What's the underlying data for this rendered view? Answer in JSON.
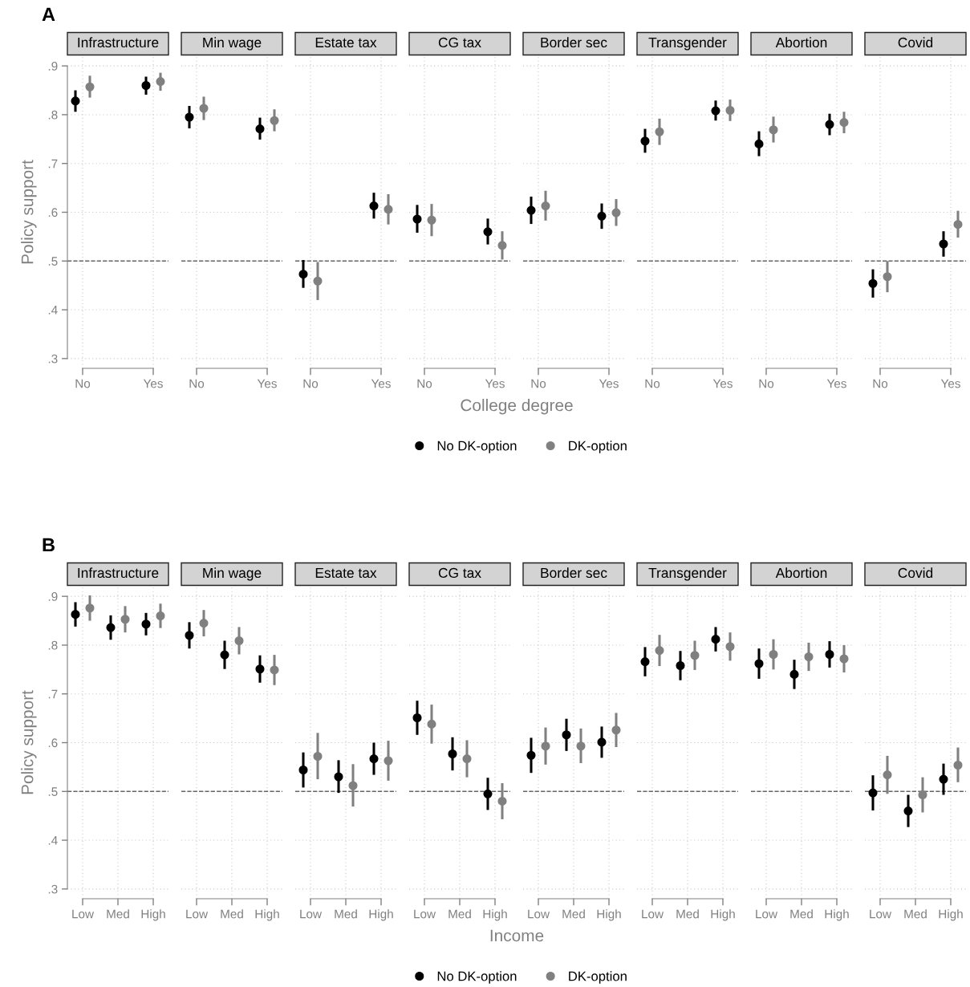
{
  "chart_data": [
    {
      "type": "scatter",
      "title": "Infrastructure",
      "ylabel": "Policy support",
      "annotations": [
        "A"
      ],
      "legend": "bottom",
      "categories": [
        "No",
        "Yes"
      ],
      "ylim": [
        0.28,
        0.92
      ],
      "yticks": [
        {
          "value": 0.3,
          "label": ".3"
        },
        {
          "value": 0.4,
          "label": ".4"
        },
        {
          "value": 0.5,
          "label": ".5"
        },
        {
          "value": 0.6,
          "label": ".6"
        },
        {
          "value": 0.7,
          "label": ".7"
        },
        {
          "value": 0.8,
          "label": ".8"
        },
        {
          "value": 0.9,
          "label": ".9"
        }
      ],
      "grid": true,
      "marker": "circle",
      "ref_lines": [
        {
          "axis": "y",
          "value": 0.5,
          "line_style": "dashed"
        }
      ],
      "series": [
        {
          "name": "No DK-option",
          "color": "#000000",
          "values": [
            0.828,
            0.86
          ],
          "errors": [
            [
              0.806,
              0.85
            ],
            [
              0.841,
              0.878
            ]
          ]
        },
        {
          "name": "DK-option",
          "color": "#808080",
          "values": [
            0.857,
            0.868
          ],
          "errors": [
            [
              0.835,
              0.88
            ],
            [
              0.849,
              0.886
            ]
          ]
        }
      ]
    },
    {
      "type": "scatter",
      "title": "Min wage",
      "tick_labels": "x",
      "categories": [
        "No",
        "Yes"
      ],
      "ylim": [
        0.28,
        0.92
      ],
      "yticks": [
        0.3,
        0.4,
        0.5,
        0.6,
        0.7,
        0.8,
        0.9
      ],
      "grid": true,
      "marker": "circle",
      "ref_lines": [
        {
          "axis": "y",
          "value": 0.5,
          "line_style": "dashed"
        }
      ],
      "series": [
        {
          "color": "#000000",
          "values": [
            0.795,
            0.771
          ],
          "errors": [
            [
              0.772,
              0.818
            ],
            [
              0.749,
              0.794
            ]
          ]
        },
        {
          "color": "#808080",
          "values": [
            0.813,
            0.788
          ],
          "errors": [
            [
              0.789,
              0.837
            ],
            [
              0.766,
              0.811
            ]
          ]
        }
      ]
    },
    {
      "type": "scatter",
      "title": "Estate tax",
      "tick_labels": "x",
      "categories": [
        "No",
        "Yes"
      ],
      "ylim": [
        0.28,
        0.92
      ],
      "yticks": [
        0.3,
        0.4,
        0.5,
        0.6,
        0.7,
        0.8,
        0.9
      ],
      "grid": true,
      "marker": "circle",
      "ref_lines": [
        {
          "axis": "y",
          "value": 0.5,
          "line_style": "dashed"
        }
      ],
      "series": [
        {
          "color": "#000000",
          "values": [
            0.473,
            0.613
          ],
          "errors": [
            [
              0.445,
              0.502
            ],
            [
              0.587,
              0.64
            ]
          ]
        },
        {
          "color": "#808080",
          "values": [
            0.459,
            0.606
          ],
          "errors": [
            [
              0.42,
              0.498
            ],
            [
              0.575,
              0.637
            ]
          ]
        }
      ]
    },
    {
      "type": "scatter",
      "title": "CG tax",
      "xlabel": "College degree",
      "tick_labels": "x",
      "categories": [
        "No",
        "Yes"
      ],
      "ylim": [
        0.28,
        0.92
      ],
      "yticks": [
        0.3,
        0.4,
        0.5,
        0.6,
        0.7,
        0.8,
        0.9
      ],
      "grid": true,
      "marker": "circle",
      "ref_lines": [
        {
          "axis": "y",
          "value": 0.5,
          "line_style": "dashed"
        }
      ],
      "series": [
        {
          "color": "#000000",
          "values": [
            0.586,
            0.56
          ],
          "errors": [
            [
              0.558,
              0.615
            ],
            [
              0.534,
              0.587
            ]
          ]
        },
        {
          "color": "#808080",
          "values": [
            0.584,
            0.532
          ],
          "errors": [
            [
              0.551,
              0.617
            ],
            [
              0.503,
              0.561
            ]
          ]
        }
      ]
    },
    {
      "type": "scatter",
      "title": "Border sec",
      "tick_labels": "x",
      "categories": [
        "No",
        "Yes"
      ],
      "ylim": [
        0.28,
        0.92
      ],
      "yticks": [
        0.3,
        0.4,
        0.5,
        0.6,
        0.7,
        0.8,
        0.9
      ],
      "grid": true,
      "marker": "circle",
      "ref_lines": [
        {
          "axis": "y",
          "value": 0.5,
          "line_style": "dashed"
        }
      ],
      "series": [
        {
          "color": "#000000",
          "values": [
            0.604,
            0.592
          ],
          "errors": [
            [
              0.576,
              0.632
            ],
            [
              0.566,
              0.618
            ]
          ]
        },
        {
          "color": "#808080",
          "values": [
            0.613,
            0.599
          ],
          "errors": [
            [
              0.583,
              0.644
            ],
            [
              0.572,
              0.627
            ]
          ]
        }
      ]
    },
    {
      "type": "scatter",
      "title": "Transgender",
      "tick_labels": "x",
      "categories": [
        "No",
        "Yes"
      ],
      "ylim": [
        0.28,
        0.92
      ],
      "yticks": [
        0.3,
        0.4,
        0.5,
        0.6,
        0.7,
        0.8,
        0.9
      ],
      "grid": true,
      "marker": "circle",
      "ref_lines": [
        {
          "axis": "y",
          "value": 0.5,
          "line_style": "dashed"
        }
      ],
      "series": [
        {
          "color": "#000000",
          "values": [
            0.746,
            0.808
          ],
          "errors": [
            [
              0.722,
              0.771
            ],
            [
              0.788,
              0.829
            ]
          ]
        },
        {
          "color": "#808080",
          "values": [
            0.765,
            0.809
          ],
          "errors": [
            [
              0.738,
              0.792
            ],
            [
              0.787,
              0.831
            ]
          ]
        }
      ]
    },
    {
      "type": "scatter",
      "title": "Abortion",
      "tick_labels": "x",
      "categories": [
        "No",
        "Yes"
      ],
      "ylim": [
        0.28,
        0.92
      ],
      "yticks": [
        0.3,
        0.4,
        0.5,
        0.6,
        0.7,
        0.8,
        0.9
      ],
      "grid": true,
      "marker": "circle",
      "ref_lines": [
        {
          "axis": "y",
          "value": 0.5,
          "line_style": "dashed"
        }
      ],
      "series": [
        {
          "color": "#000000",
          "values": [
            0.74,
            0.78
          ],
          "errors": [
            [
              0.715,
              0.766
            ],
            [
              0.758,
              0.802
            ]
          ]
        },
        {
          "color": "#808080",
          "values": [
            0.769,
            0.784
          ],
          "errors": [
            [
              0.743,
              0.796
            ],
            [
              0.762,
              0.806
            ]
          ]
        }
      ]
    },
    {
      "type": "scatter",
      "title": "Covid",
      "tick_labels": "x",
      "categories": [
        "No",
        "Yes"
      ],
      "ylim": [
        0.28,
        0.92
      ],
      "yticks": [
        0.3,
        0.4,
        0.5,
        0.6,
        0.7,
        0.8,
        0.9
      ],
      "grid": true,
      "marker": "circle",
      "ref_lines": [
        {
          "axis": "y",
          "value": 0.5,
          "line_style": "dashed"
        }
      ],
      "series": [
        {
          "color": "#000000",
          "values": [
            0.454,
            0.535
          ],
          "errors": [
            [
              0.425,
              0.483
            ],
            [
              0.509,
              0.561
            ]
          ]
        },
        {
          "color": "#808080",
          "values": [
            0.468,
            0.575
          ],
          "errors": [
            [
              0.436,
              0.5
            ],
            [
              0.548,
              0.603
            ]
          ]
        }
      ]
    },
    {
      "type": "scatter",
      "title": "Infrastructure",
      "ylabel": "Policy support",
      "annotations": [
        "B"
      ],
      "legend": "bottom",
      "categories": [
        "Low",
        "Med",
        "High"
      ],
      "ylim": [
        0.28,
        0.92
      ],
      "yticks": [
        {
          "value": 0.3,
          "label": ".3"
        },
        {
          "value": 0.4,
          "label": ".4"
        },
        {
          "value": 0.5,
          "label": ".5"
        },
        {
          "value": 0.6,
          "label": ".6"
        },
        {
          "value": 0.7,
          "label": ".7"
        },
        {
          "value": 0.8,
          "label": ".8"
        },
        {
          "value": 0.9,
          "label": ".9"
        }
      ],
      "grid": true,
      "marker": "circle",
      "ref_lines": [
        {
          "axis": "y",
          "value": 0.5,
          "line_style": "dashed"
        }
      ],
      "series": [
        {
          "name": "No DK-option",
          "color": "#000000",
          "values": [
            0.863,
            0.836,
            0.843
          ],
          "errors": [
            [
              0.838,
              0.888
            ],
            [
              0.811,
              0.861
            ],
            [
              0.82,
              0.866
            ]
          ]
        },
        {
          "name": "DK-option",
          "color": "#808080",
          "values": [
            0.876,
            0.853,
            0.86
          ],
          "errors": [
            [
              0.85,
              0.902
            ],
            [
              0.826,
              0.88
            ],
            [
              0.835,
              0.885
            ]
          ]
        }
      ]
    },
    {
      "type": "scatter",
      "title": "Min wage",
      "tick_labels": "x",
      "categories": [
        "Low",
        "Med",
        "High"
      ],
      "ylim": [
        0.28,
        0.92
      ],
      "yticks": [
        0.3,
        0.4,
        0.5,
        0.6,
        0.7,
        0.8,
        0.9
      ],
      "grid": true,
      "marker": "circle",
      "ref_lines": [
        {
          "axis": "y",
          "value": 0.5,
          "line_style": "dashed"
        }
      ],
      "series": [
        {
          "color": "#000000",
          "values": [
            0.82,
            0.78,
            0.751
          ],
          "errors": [
            [
              0.793,
              0.847
            ],
            [
              0.751,
              0.809
            ],
            [
              0.723,
              0.779
            ]
          ]
        },
        {
          "color": "#808080",
          "values": [
            0.845,
            0.809,
            0.749
          ],
          "errors": [
            [
              0.818,
              0.872
            ],
            [
              0.781,
              0.837
            ],
            [
              0.718,
              0.78
            ]
          ]
        }
      ]
    },
    {
      "type": "scatter",
      "title": "Estate tax",
      "tick_labels": "x",
      "categories": [
        "Low",
        "Med",
        "High"
      ],
      "ylim": [
        0.28,
        0.92
      ],
      "yticks": [
        0.3,
        0.4,
        0.5,
        0.6,
        0.7,
        0.8,
        0.9
      ],
      "grid": true,
      "marker": "circle",
      "ref_lines": [
        {
          "axis": "y",
          "value": 0.5,
          "line_style": "dashed"
        }
      ],
      "series": [
        {
          "color": "#000000",
          "values": [
            0.544,
            0.53,
            0.567
          ],
          "errors": [
            [
              0.508,
              0.58
            ],
            [
              0.497,
              0.564
            ],
            [
              0.534,
              0.6
            ]
          ]
        },
        {
          "color": "#808080",
          "values": [
            0.572,
            0.512,
            0.563
          ],
          "errors": [
            [
              0.525,
              0.62
            ],
            [
              0.469,
              0.556
            ],
            [
              0.522,
              0.604
            ]
          ]
        }
      ]
    },
    {
      "type": "scatter",
      "title": "CG tax",
      "xlabel": "Income",
      "tick_labels": "x",
      "categories": [
        "Low",
        "Med",
        "High"
      ],
      "ylim": [
        0.28,
        0.92
      ],
      "yticks": [
        0.3,
        0.4,
        0.5,
        0.6,
        0.7,
        0.8,
        0.9
      ],
      "grid": true,
      "marker": "circle",
      "ref_lines": [
        {
          "axis": "y",
          "value": 0.5,
          "line_style": "dashed"
        }
      ],
      "series": [
        {
          "color": "#000000",
          "values": [
            0.651,
            0.577,
            0.495
          ],
          "errors": [
            [
              0.616,
              0.686
            ],
            [
              0.543,
              0.611
            ],
            [
              0.462,
              0.528
            ]
          ]
        },
        {
          "color": "#808080",
          "values": [
            0.638,
            0.567,
            0.48
          ],
          "errors": [
            [
              0.598,
              0.678
            ],
            [
              0.529,
              0.605
            ],
            [
              0.443,
              0.517
            ]
          ]
        }
      ]
    },
    {
      "type": "scatter",
      "title": "Border sec",
      "tick_labels": "x",
      "categories": [
        "Low",
        "Med",
        "High"
      ],
      "ylim": [
        0.28,
        0.92
      ],
      "yticks": [
        0.3,
        0.4,
        0.5,
        0.6,
        0.7,
        0.8,
        0.9
      ],
      "grid": true,
      "marker": "circle",
      "ref_lines": [
        {
          "axis": "y",
          "value": 0.5,
          "line_style": "dashed"
        }
      ],
      "series": [
        {
          "color": "#000000",
          "values": [
            0.574,
            0.616,
            0.601
          ],
          "errors": [
            [
              0.538,
              0.61
            ],
            [
              0.583,
              0.649
            ],
            [
              0.569,
              0.633
            ]
          ]
        },
        {
          "color": "#808080",
          "values": [
            0.593,
            0.593,
            0.626
          ],
          "errors": [
            [
              0.555,
              0.631
            ],
            [
              0.558,
              0.629
            ],
            [
              0.591,
              0.661
            ]
          ]
        }
      ]
    },
    {
      "type": "scatter",
      "title": "Transgender",
      "tick_labels": "x",
      "categories": [
        "Low",
        "Med",
        "High"
      ],
      "ylim": [
        0.28,
        0.92
      ],
      "yticks": [
        0.3,
        0.4,
        0.5,
        0.6,
        0.7,
        0.8,
        0.9
      ],
      "grid": true,
      "marker": "circle",
      "ref_lines": [
        {
          "axis": "y",
          "value": 0.5,
          "line_style": "dashed"
        }
      ],
      "series": [
        {
          "color": "#000000",
          "values": [
            0.766,
            0.758,
            0.812
          ],
          "errors": [
            [
              0.736,
              0.796
            ],
            [
              0.728,
              0.788
            ],
            [
              0.787,
              0.837
            ]
          ]
        },
        {
          "color": "#808080",
          "values": [
            0.789,
            0.779,
            0.797
          ],
          "errors": [
            [
              0.757,
              0.821
            ],
            [
              0.749,
              0.809
            ],
            [
              0.768,
              0.826
            ]
          ]
        }
      ]
    },
    {
      "type": "scatter",
      "title": "Abortion",
      "tick_labels": "x",
      "categories": [
        "Low",
        "Med",
        "High"
      ],
      "ylim": [
        0.28,
        0.92
      ],
      "yticks": [
        0.3,
        0.4,
        0.5,
        0.6,
        0.7,
        0.8,
        0.9
      ],
      "grid": true,
      "marker": "circle",
      "ref_lines": [
        {
          "axis": "y",
          "value": 0.5,
          "line_style": "dashed"
        }
      ],
      "series": [
        {
          "color": "#000000",
          "values": [
            0.762,
            0.74,
            0.781
          ],
          "errors": [
            [
              0.731,
              0.793
            ],
            [
              0.71,
              0.77
            ],
            [
              0.754,
              0.808
            ]
          ]
        },
        {
          "color": "#808080",
          "values": [
            0.781,
            0.776,
            0.772
          ],
          "errors": [
            [
              0.75,
              0.812
            ],
            [
              0.747,
              0.805
            ],
            [
              0.744,
              0.8
            ]
          ]
        }
      ]
    },
    {
      "type": "scatter",
      "title": "Covid",
      "tick_labels": "x",
      "categories": [
        "Low",
        "Med",
        "High"
      ],
      "ylim": [
        0.28,
        0.92
      ],
      "yticks": [
        0.3,
        0.4,
        0.5,
        0.6,
        0.7,
        0.8,
        0.9
      ],
      "grid": true,
      "marker": "circle",
      "ref_lines": [
        {
          "axis": "y",
          "value": 0.5,
          "line_style": "dashed"
        }
      ],
      "series": [
        {
          "color": "#000000",
          "values": [
            0.497,
            0.46,
            0.525
          ],
          "errors": [
            [
              0.461,
              0.533
            ],
            [
              0.427,
              0.493
            ],
            [
              0.493,
              0.557
            ]
          ]
        },
        {
          "color": "#808080",
          "values": [
            0.534,
            0.493,
            0.554
          ],
          "errors": [
            [
              0.495,
              0.573
            ],
            [
              0.457,
              0.529
            ],
            [
              0.519,
              0.59
            ]
          ]
        }
      ]
    }
  ]
}
